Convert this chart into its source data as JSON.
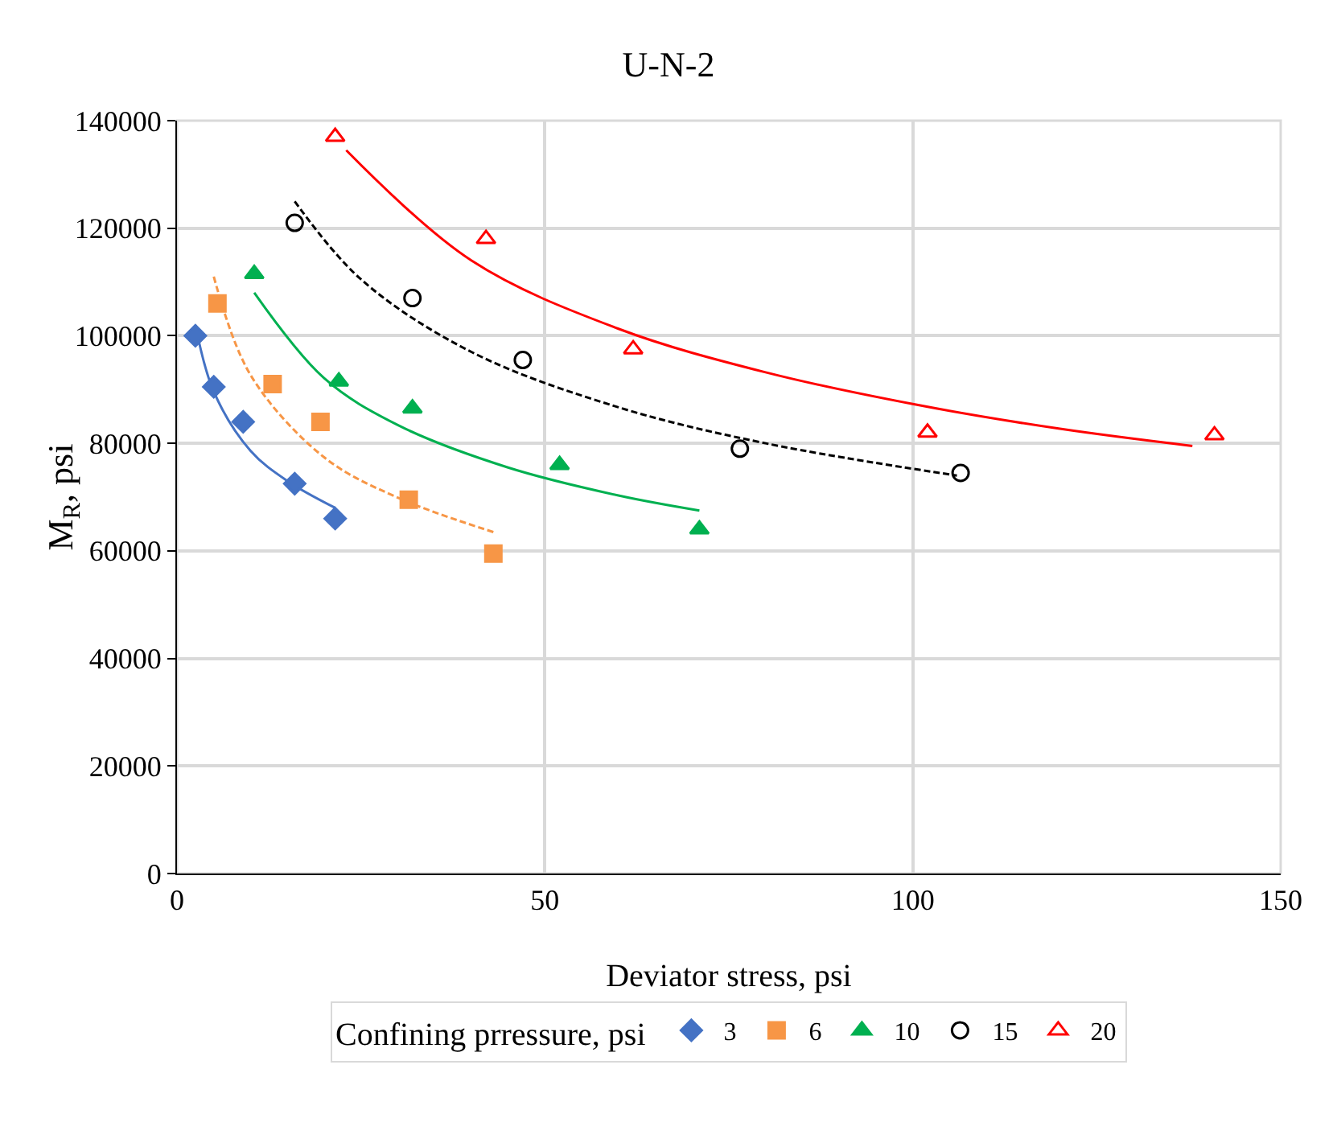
{
  "chart_data": {
    "type": "scatter",
    "title": "U-N-2",
    "xlabel": "Deviator stress, psi",
    "ylabel": "M$_{R}$, psi",
    "legend_title": "Confining prressure, psi",
    "xlim": [
      0,
      150
    ],
    "xticks": [
      0,
      50,
      100,
      150
    ],
    "ylim": [
      0,
      140000
    ],
    "yticks": [
      0,
      20000,
      40000,
      60000,
      80000,
      100000,
      120000,
      140000
    ],
    "grid": true,
    "legend": "bottom",
    "series": [
      {
        "name": "3",
        "color": "#4472c4",
        "marker": "diamond",
        "x": [
          2.5,
          5,
          9,
          16,
          21.5
        ],
        "values": [
          100000,
          90500,
          84000,
          72500,
          66000
        ]
      },
      {
        "name": "6",
        "color": "#f79646",
        "marker": "square",
        "x": [
          5.5,
          13,
          19.5,
          31.5,
          43
        ],
        "values": [
          106000,
          91000,
          84000,
          69500,
          59500
        ]
      },
      {
        "name": "10",
        "color": "#00b050",
        "marker": "triangle",
        "x": [
          10.5,
          22,
          32,
          52,
          71
        ],
        "values": [
          111500,
          91500,
          86500,
          76000,
          64000
        ]
      },
      {
        "name": "15",
        "color": "#000000",
        "marker": "circle-open",
        "x": [
          16,
          32,
          47,
          76.5,
          106.5
        ],
        "values": [
          121000,
          107000,
          95500,
          79000,
          74500
        ]
      },
      {
        "name": "20",
        "color": "#ff0000",
        "marker": "triangle-open",
        "x": [
          21.5,
          42,
          62,
          102,
          141
        ],
        "values": [
          137000,
          118000,
          97500,
          82000,
          81500
        ]
      },
      {
        "type": "line",
        "color": "#4472c4",
        "line_style": "solid",
        "marker": "none",
        "x": [
          2.5,
          5,
          10,
          15,
          21.5
        ],
        "values": [
          102000,
          89600,
          78600,
          73000,
          68000
        ]
      },
      {
        "type": "line",
        "color": "#f79646",
        "line_style": "dashed",
        "marker": "none",
        "x": [
          5,
          10,
          20,
          30,
          43
        ],
        "values": [
          111000,
          92700,
          77400,
          69900,
          63500
        ]
      },
      {
        "type": "line",
        "color": "#00b050",
        "line_style": "solid",
        "marker": "none",
        "x": [
          10.5,
          20,
          30,
          45,
          60,
          71
        ],
        "values": [
          108000,
          92100,
          83400,
          75500,
          70300,
          67500
        ]
      },
      {
        "type": "line",
        "color": "#000000",
        "line_style": "dashed",
        "marker": "none",
        "x": [
          16,
          25,
          40,
          60,
          80,
          106
        ],
        "values": [
          125000,
          110500,
          97000,
          86700,
          80000,
          74000
        ]
      },
      {
        "type": "line",
        "color": "#ff0000",
        "line_style": "solid",
        "marker": "none",
        "x": [
          23,
          40,
          60,
          80,
          100,
          120,
          138
        ],
        "values": [
          134500,
          114000,
          101300,
          93200,
          87300,
          82700,
          79500
        ]
      }
    ]
  }
}
